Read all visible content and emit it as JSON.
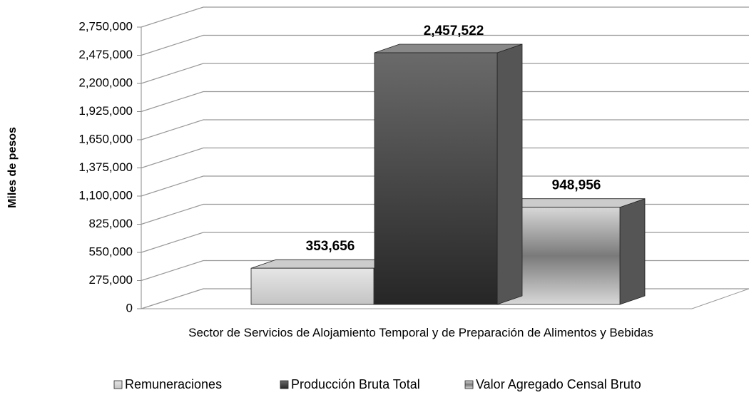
{
  "chart_data": {
    "type": "bar3d",
    "ylabel": "Miles de pesos",
    "categories": [
      "Sector de Servicios de Alojamiento Temporal y de Preparación de Alimentos y Bebidas"
    ],
    "series": [
      {
        "name": "Remuneraciones",
        "color": "#d0d0d0",
        "values": [
          353656
        ],
        "value_labels": [
          "353,656"
        ]
      },
      {
        "name": "Producción Bruta Total",
        "color": "#3a3a3a",
        "values": [
          2457522
        ],
        "value_labels": [
          "2,457,522"
        ]
      },
      {
        "name": "Valor Agregado Censal Bruto",
        "color": "#b8b8b8",
        "values": [
          948956
        ],
        "value_labels": [
          "948,956"
        ]
      }
    ],
    "ylim": [
      0,
      2750000
    ],
    "yticks": [
      {
        "value": 0,
        "label": "0"
      },
      {
        "value": 275000,
        "label": "275,000"
      },
      {
        "value": 550000,
        "label": "550,000"
      },
      {
        "value": 825000,
        "label": "825,000"
      },
      {
        "value": 1100000,
        "label": "1,100,000"
      },
      {
        "value": 1375000,
        "label": "1,375,000"
      },
      {
        "value": 1650000,
        "label": "1,650,000"
      },
      {
        "value": 1925000,
        "label": "1,925,000"
      },
      {
        "value": 2200000,
        "label": "2,200,000"
      },
      {
        "value": 2475000,
        "label": "2,475,000"
      },
      {
        "value": 2750000,
        "label": "2,750,000"
      }
    ],
    "grid": true,
    "legend": "bottom"
  }
}
